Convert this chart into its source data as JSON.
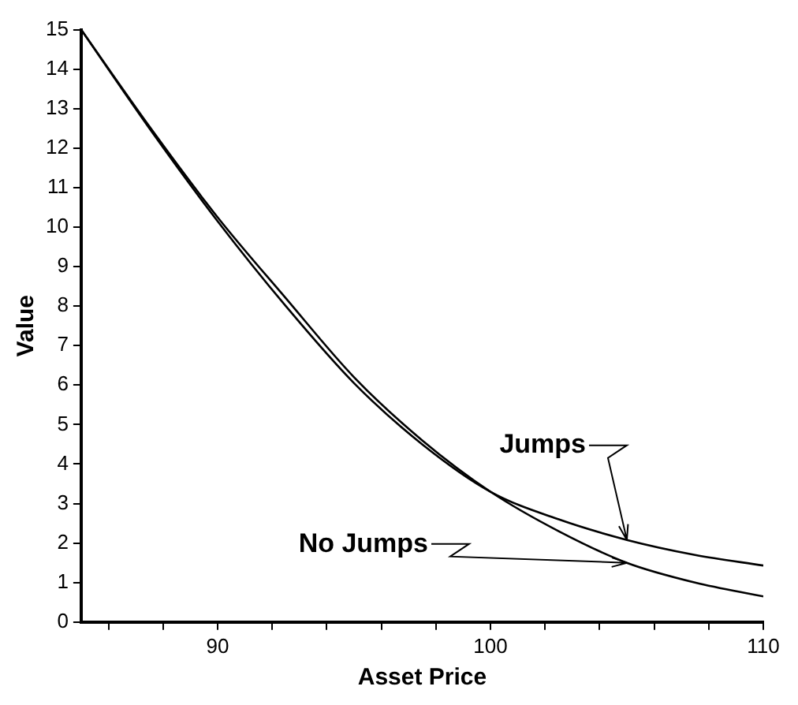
{
  "chart_data": {
    "type": "line",
    "xlabel": "Asset Price",
    "ylabel": "Value",
    "series": [
      {
        "name": "Jumps",
        "color": "#000000",
        "x": [
          85,
          87.5,
          90,
          92.5,
          95,
          97.5,
          100,
          102.5,
          105,
          107.5,
          110
        ],
        "values": [
          15,
          12.5,
          10.15,
          8.0,
          6.05,
          4.5,
          3.3,
          2.6,
          2.08,
          1.7,
          1.43
        ]
      },
      {
        "name": "No Jumps",
        "color": "#000000",
        "x": [
          85,
          87.5,
          90,
          92.5,
          95,
          97.5,
          100,
          102.5,
          105,
          107.5,
          110
        ],
        "values": [
          15,
          12.55,
          10.25,
          8.2,
          6.2,
          4.6,
          3.3,
          2.3,
          1.5,
          1.0,
          0.65
        ]
      }
    ],
    "xlim": [
      85,
      110
    ],
    "xticks": [
      {
        "value": 86,
        "label": null
      },
      {
        "value": 88,
        "label": null
      },
      90,
      {
        "value": 92,
        "label": null
      },
      {
        "value": 94,
        "label": null
      },
      {
        "value": 96,
        "label": null
      },
      {
        "value": 98,
        "label": null
      },
      100,
      {
        "value": 102,
        "label": null
      },
      {
        "value": 104,
        "label": null
      },
      {
        "value": 106,
        "label": null
      },
      {
        "value": 108,
        "label": null
      },
      110
    ],
    "ylim": [
      0,
      15
    ],
    "yticks": [
      0,
      1,
      2,
      3,
      4,
      5,
      6,
      7,
      8,
      9,
      10,
      11,
      12,
      13,
      14,
      15
    ],
    "grid": false,
    "legend": false,
    "marker": "none",
    "line_style": "solid"
  }
}
